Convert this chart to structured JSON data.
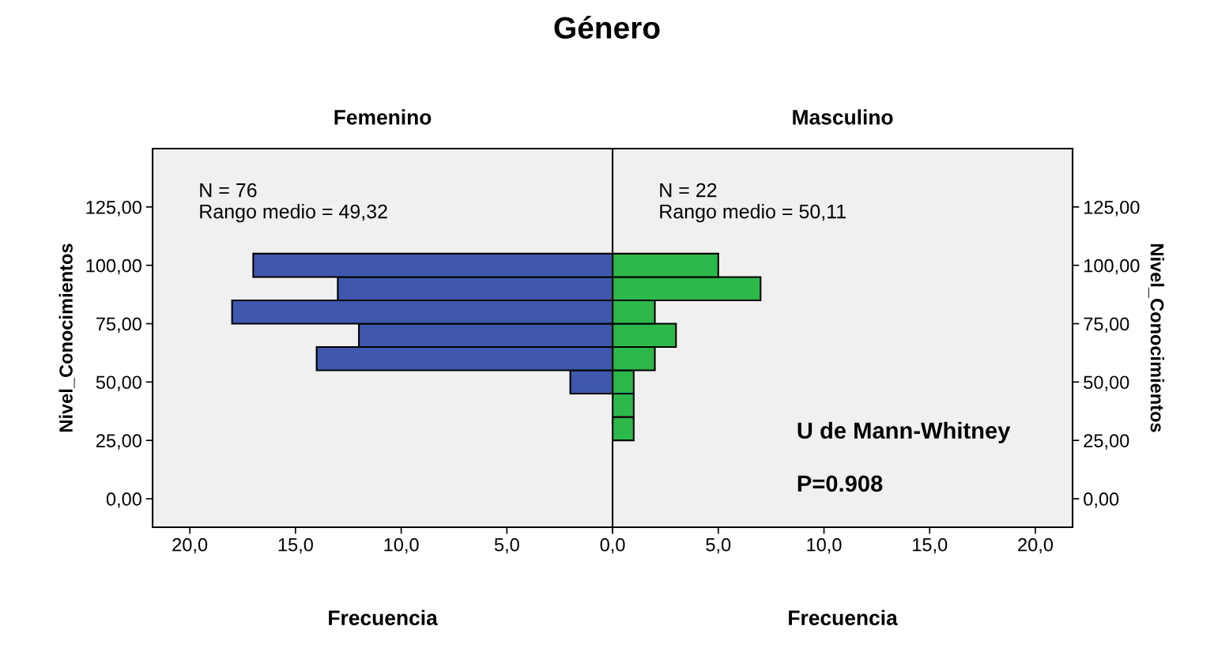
{
  "chart_data": [
    {
      "type": "histogram",
      "orientation": "horizontal",
      "title": "Género",
      "subtitle": "Femenino",
      "ylabel": "Nivel_Conocimientos",
      "xlabel": "Frecuencia",
      "bins": [
        45,
        55,
        65,
        75,
        85,
        95,
        105
      ],
      "values": [
        2,
        14,
        12,
        18,
        13,
        17
      ],
      "color": "#3f57ad",
      "xlim": [
        21.76,
        0
      ],
      "xticks": [
        {
          "value": 20,
          "label": "20,0"
        },
        {
          "value": 15,
          "label": "15,0"
        },
        {
          "value": 10,
          "label": "10,0"
        },
        {
          "value": 5,
          "label": "5,0"
        },
        {
          "value": 0,
          "label": null
        }
      ],
      "ylim": [
        -12.2,
        150
      ],
      "yticks": [
        {
          "value": 0,
          "label": "0,00"
        },
        {
          "value": 25,
          "label": "25,00"
        },
        {
          "value": 50,
          "label": "50,00"
        },
        {
          "value": 75,
          "label": "75,00"
        },
        {
          "value": 100,
          "label": "100,00"
        },
        {
          "value": 125,
          "label": "125,00"
        }
      ],
      "annotations": [
        "N = 76\nRango medio = 49,32"
      ],
      "grid": false
    },
    {
      "type": "histogram",
      "orientation": "horizontal",
      "subtitle": "Masculino",
      "ylabel": "Nivel_Conocimientos",
      "xlabel": "Frecuencia",
      "bins": [
        25,
        35,
        45,
        55,
        65,
        75,
        85,
        95,
        105
      ],
      "values": [
        1,
        1,
        1,
        2,
        3,
        2,
        7,
        5
      ],
      "color": "#2db84a",
      "xlim": [
        0,
        21.76
      ],
      "xticks": [
        {
          "value": 0,
          "label": "0,0"
        },
        {
          "value": 5,
          "label": "5,0"
        },
        {
          "value": 10,
          "label": "10,0"
        },
        {
          "value": 15,
          "label": "15,0"
        },
        {
          "value": 20,
          "label": "20,0"
        }
      ],
      "ylim": [
        -12.2,
        150
      ],
      "yticks": [
        {
          "value": 0,
          "label": "0,00"
        },
        {
          "value": 25,
          "label": "25,00"
        },
        {
          "value": 50,
          "label": "50,00"
        },
        {
          "value": 75,
          "label": "75,00"
        },
        {
          "value": 100,
          "label": "100,00"
        },
        {
          "value": 125,
          "label": "125,00"
        }
      ],
      "annotations": [
        "N = 22\nRango medio = 50,11",
        "U de Mann-Whitney",
        "P=0.908"
      ],
      "grid": false
    }
  ]
}
